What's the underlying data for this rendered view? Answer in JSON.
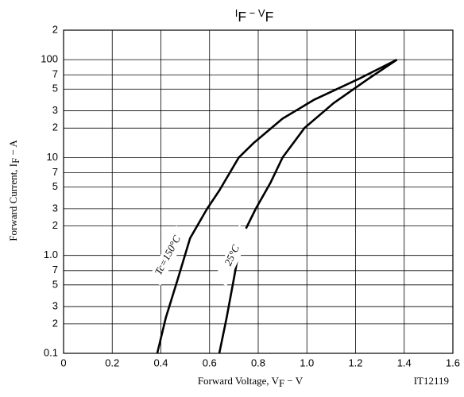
{
  "chart_data": {
    "type": "line",
    "title": [
      "I",
      "F",
      " − V",
      "F"
    ],
    "x_label": [
      "Forward Voltage, V",
      "F",
      " − V"
    ],
    "y_label": [
      "Forward Current, I",
      "F",
      " − A"
    ],
    "ylog": true,
    "grid": true,
    "xlim": [
      0,
      1.6
    ],
    "ylim": [
      0.1,
      200
    ],
    "xticks": [
      0,
      0.2,
      0.4,
      0.6,
      0.8,
      {
        "value": 1,
        "label": "1.0"
      },
      1.2,
      1.4,
      1.6
    ],
    "yticks": [
      0.1,
      {
        "value": 0.2,
        "label": "2"
      },
      {
        "value": 0.3,
        "label": "3"
      },
      {
        "value": 0.5,
        "label": "5"
      },
      {
        "value": 0.7,
        "label": "7"
      },
      {
        "value": 1,
        "label": "1.0"
      },
      2,
      3,
      5,
      7,
      10,
      {
        "value": 20,
        "label": "2"
      },
      {
        "value": 30,
        "label": "3"
      },
      {
        "value": 50,
        "label": "5"
      },
      {
        "value": 70,
        "label": "7"
      },
      100,
      {
        "value": 200,
        "label": "2"
      }
    ],
    "series": [
      {
        "name": "Tc=150°C",
        "color": "#000000",
        "x": [
          0.385,
          0.42,
          0.47,
          0.52,
          0.59,
          0.64,
          0.72,
          0.78,
          0.9,
          1.03,
          1.21,
          1.37
        ],
        "values": [
          0.1,
          0.23,
          0.58,
          1.5,
          3,
          4.6,
          10,
          14,
          25,
          39,
          63,
          100
        ]
      },
      {
        "name": "25°C",
        "color": "#000000",
        "x": [
          0.64,
          0.67,
          0.7,
          0.73,
          0.79,
          0.85,
          0.9,
          0.99,
          1.11,
          1.25,
          1.37
        ],
        "values": [
          0.1,
          0.23,
          0.58,
          1.5,
          3,
          5.5,
          10,
          20,
          36,
          63,
          100
        ]
      }
    ],
    "figure_id": "IT12119"
  }
}
